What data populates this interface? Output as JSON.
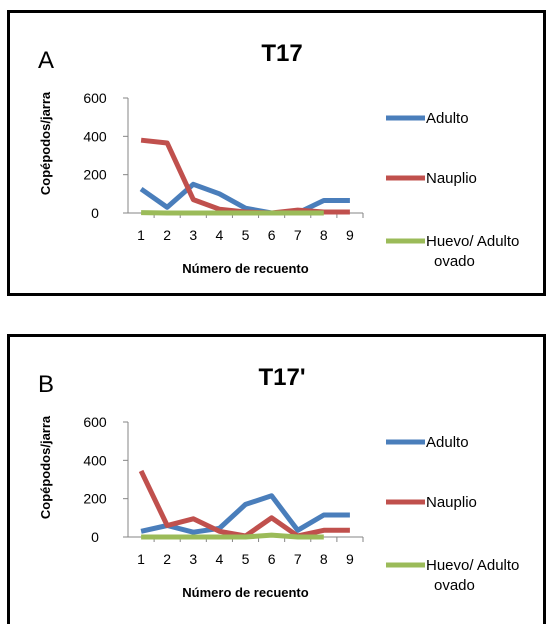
{
  "chart_data": [
    {
      "type": "line",
      "panel_letter": "A",
      "title": "T17",
      "xlabel": "Número de recuento",
      "ylabel": "Copépodos/jarra",
      "categories": [
        "1",
        "2",
        "3",
        "4",
        "5",
        "6",
        "7",
        "8",
        "9"
      ],
      "yticks": [
        "0",
        "200",
        "400",
        "600"
      ],
      "ylim": [
        0,
        600
      ],
      "grid": false,
      "legend_position": "right",
      "series": [
        {
          "name": "Adulto",
          "color": "#4a7ebb",
          "values": [
            125,
            30,
            150,
            100,
            25,
            0,
            0,
            65,
            65
          ]
        },
        {
          "name": "Nauplio",
          "color": "#c0504d",
          "values": [
            380,
            365,
            70,
            20,
            5,
            0,
            15,
            5,
            5
          ]
        },
        {
          "name": "Huevo/ Adulto ovado",
          "name_lines": [
            "Huevo/ Adulto",
            "ovado"
          ],
          "color": "#9bbb59",
          "values": [
            2,
            0,
            0,
            0,
            0,
            0,
            0,
            0,
            null
          ]
        }
      ]
    },
    {
      "type": "line",
      "panel_letter": "B",
      "title": "T17'",
      "xlabel": "Número de recuento",
      "ylabel": "Copépodos/jarra",
      "categories": [
        "1",
        "2",
        "3",
        "4",
        "5",
        "6",
        "7",
        "8",
        "9"
      ],
      "yticks": [
        "0",
        "200",
        "400",
        "600"
      ],
      "ylim": [
        0,
        600
      ],
      "grid": false,
      "legend_position": "right",
      "series": [
        {
          "name": "Adulto",
          "color": "#4a7ebb",
          "values": [
            30,
            60,
            25,
            45,
            170,
            215,
            35,
            115,
            115
          ]
        },
        {
          "name": "Nauplio",
          "color": "#c0504d",
          "values": [
            345,
            60,
            95,
            30,
            5,
            100,
            5,
            35,
            35
          ]
        },
        {
          "name": "Huevo/ Adulto ovado",
          "name_lines": [
            "Huevo/ Adulto",
            "ovado"
          ],
          "color": "#9bbb59",
          "values": [
            0,
            0,
            0,
            0,
            0,
            10,
            0,
            0,
            null
          ]
        }
      ]
    }
  ]
}
